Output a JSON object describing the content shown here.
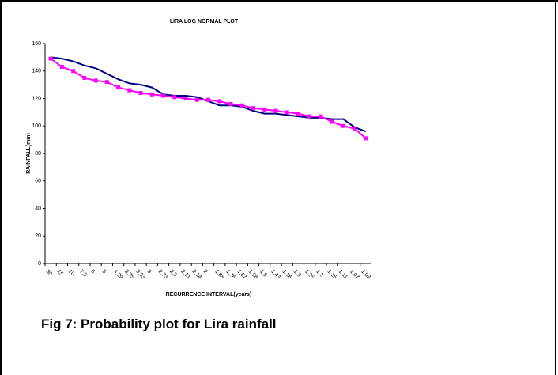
{
  "chart_data": {
    "type": "line",
    "title": "LIRA LOG NORMAL PLOT",
    "x_label": "RECURRENCE INTERVAL(years)",
    "y_label": "RAINFALL(mm)",
    "categories": [
      "30",
      "15",
      "10",
      "7.5",
      "6",
      "5",
      "4.29",
      "3.75",
      "3.33",
      "3",
      "2.73",
      "2.5",
      "2.31",
      "2.14",
      "2",
      "1.88",
      "1.76",
      "1.67",
      "1.58",
      "1.5",
      "1.43",
      "1.36",
      "1.3",
      "1.25",
      "1.2",
      "1.15",
      "1.11",
      "1.07",
      "1.03"
    ],
    "series": [
      {
        "color": "#000080",
        "marker": "none",
        "values": [
          150,
          149,
          147,
          144,
          142,
          138,
          134,
          131,
          130,
          128,
          123,
          122,
          122,
          121,
          118,
          115,
          115,
          114,
          111,
          109,
          109,
          108,
          107,
          106,
          106,
          105,
          105,
          99,
          96
        ]
      },
      {
        "color": "#ff00ff",
        "marker": "square",
        "values": [
          149,
          143,
          140,
          135,
          133,
          132,
          128,
          126,
          124,
          123,
          122,
          121,
          120,
          119,
          119,
          118,
          116,
          115,
          113,
          112,
          111,
          110,
          109,
          107,
          107,
          103,
          100,
          98,
          91
        ]
      }
    ],
    "ylim": [
      0,
      160
    ],
    "yticks": [
      0,
      20,
      40,
      60,
      80,
      100,
      120,
      140,
      160
    ],
    "grid": false
  },
  "caption": "Fig 7: Probability plot for Lira rainfall"
}
